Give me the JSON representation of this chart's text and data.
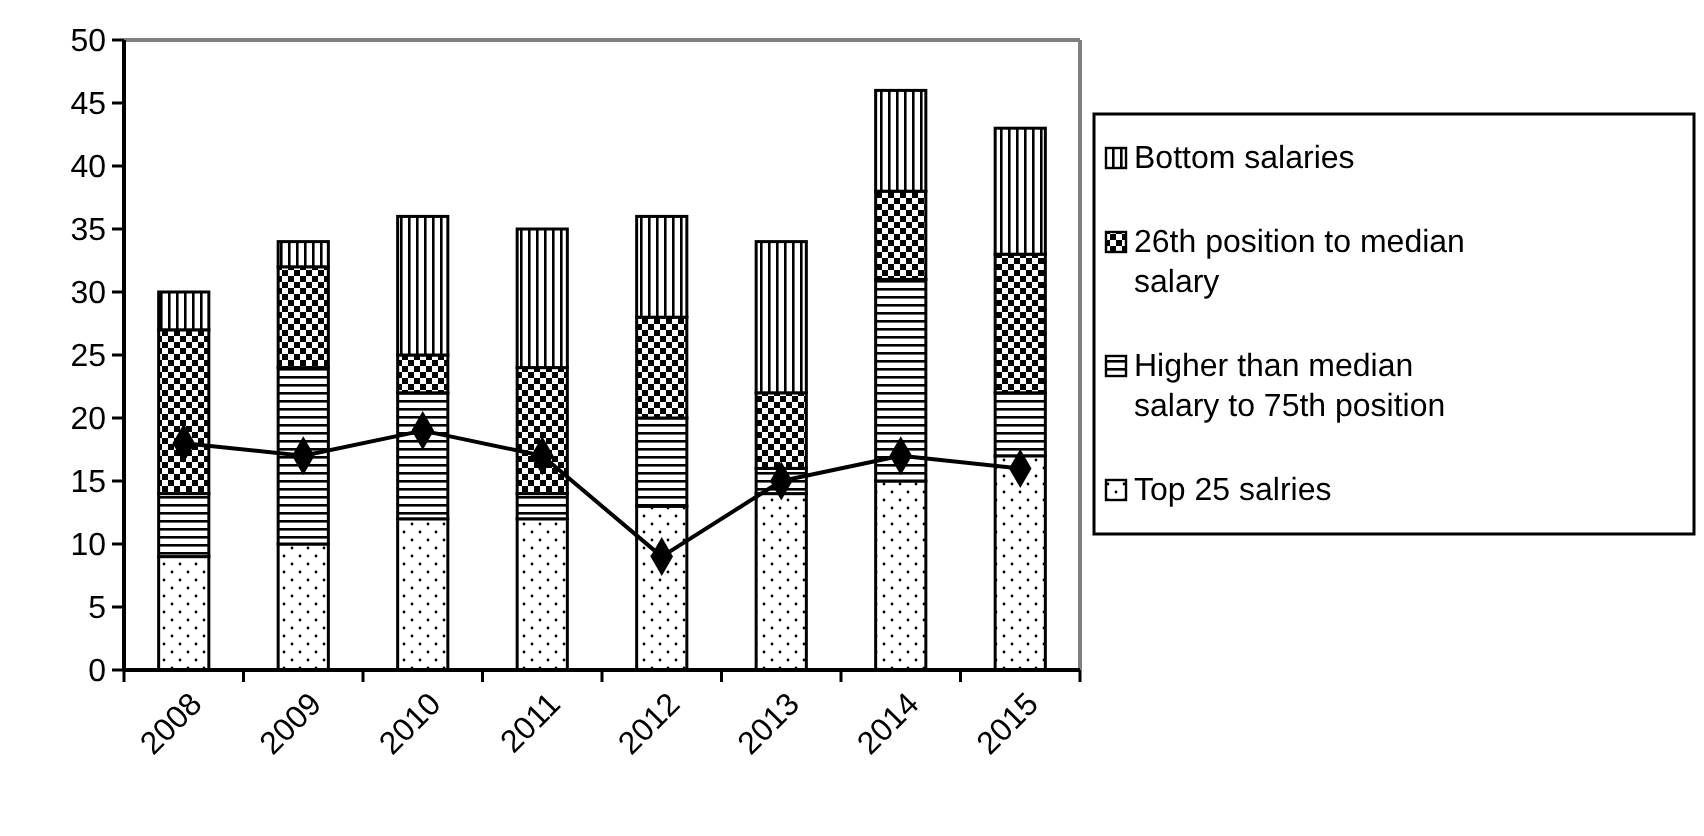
{
  "chart_data": {
    "type": "bar",
    "stacked": true,
    "categories": [
      "2008",
      "2009",
      "2010",
      "2011",
      "2012",
      "2013",
      "2014",
      "2015"
    ],
    "series": [
      {
        "name": "Top 25 salries",
        "color": "#000000",
        "values": [
          9,
          10,
          12,
          12,
          13,
          14,
          15,
          17
        ]
      },
      {
        "name": "Higher than median salary to 75th position",
        "color": "#000000",
        "values": [
          5,
          14,
          10,
          2,
          7,
          2,
          16,
          5
        ]
      },
      {
        "name": "26th position to median salary",
        "color": "#000000",
        "values": [
          13,
          8,
          3,
          10,
          8,
          6,
          7,
          11
        ]
      },
      {
        "name": "Bottom salaries",
        "color": "#000000",
        "values": [
          3,
          2,
          11,
          11,
          8,
          12,
          8,
          10
        ]
      },
      {
        "type": "line",
        "color": "#000000",
        "marker": "diamond",
        "values": [
          18,
          17,
          19,
          17,
          9,
          15,
          17,
          16
        ]
      }
    ],
    "ylim": [
      0,
      50
    ],
    "yticks": [
      0,
      5,
      10,
      15,
      20,
      25,
      30,
      35,
      40,
      45,
      50
    ],
    "grid": false,
    "legend": "right"
  }
}
